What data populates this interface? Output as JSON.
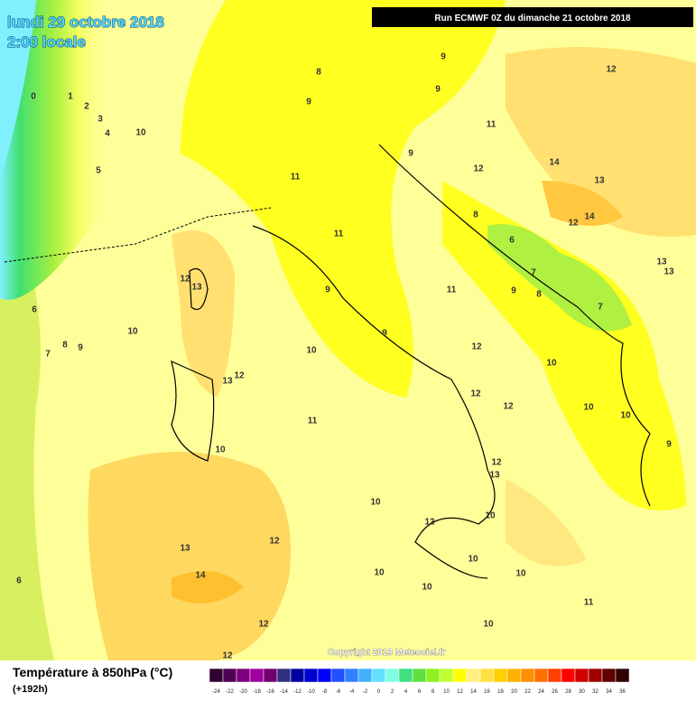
{
  "header": {
    "date": "lundi 29 octobre 2018",
    "time": "2:00 locale",
    "run": "Run ECMWF 0Z du dimanche 21 octobre 2018"
  },
  "map": {
    "labels": [
      0,
      1,
      2,
      3,
      4,
      10,
      5,
      6,
      7,
      8,
      9,
      10,
      12,
      13,
      12,
      13,
      10,
      11,
      10,
      9,
      9,
      11,
      11,
      11,
      9,
      8,
      9,
      9,
      12,
      11,
      9,
      12,
      14,
      13,
      14,
      12,
      8,
      6,
      7,
      8,
      9,
      13,
      13,
      7,
      12,
      10,
      12,
      12,
      10,
      10,
      9,
      12,
      13,
      10,
      12,
      10,
      12,
      13,
      14,
      10,
      10,
      10,
      10,
      6,
      12,
      11,
      10,
      12
    ]
  },
  "footer": {
    "copyright": "Copyright 2018 Meteociel.fr",
    "title": "Température à 850hPa (°C)",
    "subtitle": "(+192h)",
    "scale": {
      "labels": [
        -24,
        -22,
        -20,
        -18,
        -16,
        -14,
        -12,
        -10,
        -8,
        -6,
        -4,
        -2,
        0,
        2,
        4,
        6,
        8,
        10,
        12,
        14,
        16,
        18,
        20,
        22,
        24,
        26,
        28,
        30,
        32,
        34,
        36
      ],
      "colors": [
        "#300030",
        "#500050",
        "#800080",
        "#a000a0",
        "#700070",
        "#303080",
        "#0000a0",
        "#0000d0",
        "#0000ff",
        "#2050ff",
        "#3080ff",
        "#40b0ff",
        "#60e0ff",
        "#80ffe0",
        "#40e080",
        "#60e040",
        "#90f020",
        "#c0ff30",
        "#ffff00",
        "#fff080",
        "#ffe040",
        "#ffd000",
        "#ffb000",
        "#ff9000",
        "#ff7000",
        "#ff4000",
        "#ff0000",
        "#d00000",
        "#a00000",
        "#600000",
        "#300000"
      ]
    }
  }
}
